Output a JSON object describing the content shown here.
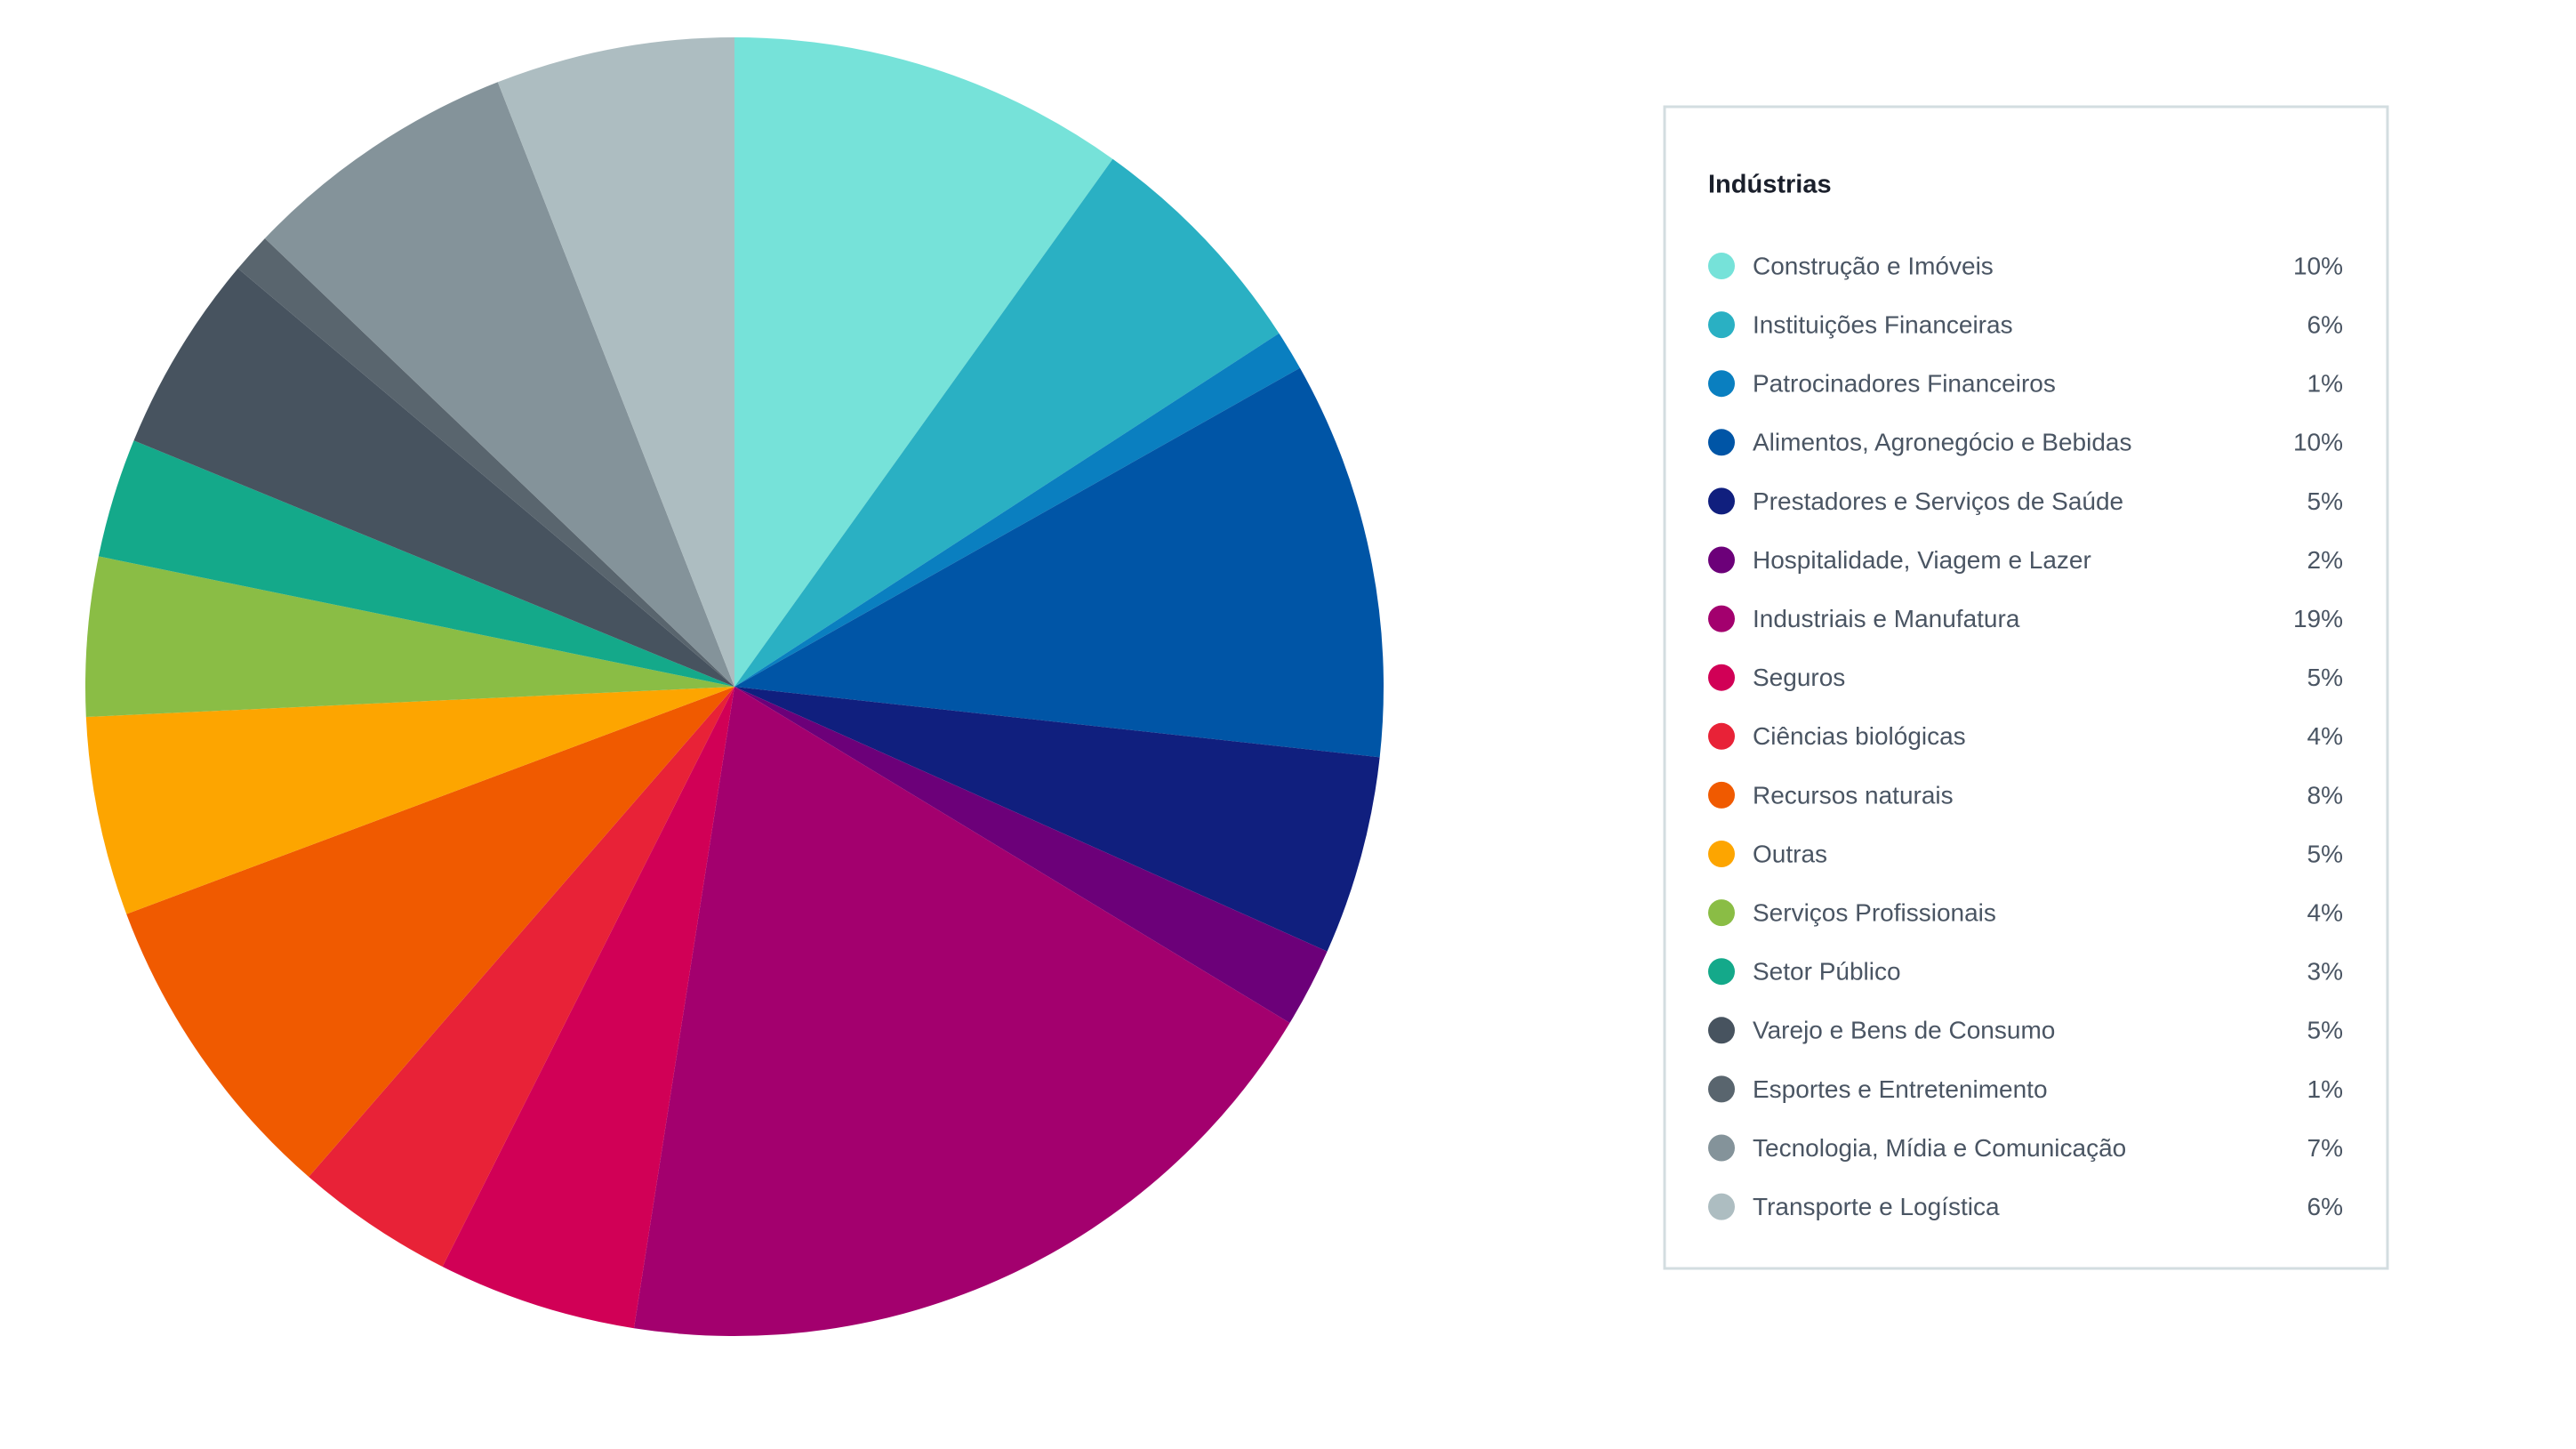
{
  "chart_data": {
    "type": "pie",
    "legend_title": "Indústrias",
    "categories": [
      "Construção e Imóveis",
      "Instituições Financeiras",
      "Patrocinadores Financeiros",
      "Alimentos, Agronegócio e Bebidas",
      "Prestadores e Serviços de Saúde",
      "Hospitalidade, Viagem e Lazer",
      "Industriais e Manufatura",
      "Seguros",
      "Ciências biológicas",
      "Recursos naturais",
      "Outras",
      "Serviços Profissionais",
      "Setor Público",
      "Varejo e Bens de Consumo",
      "Esportes e Entretenimento",
      "Tecnologia, Mídia e Comunicação",
      "Transporte e Logística"
    ],
    "values": [
      10,
      6,
      1,
      10,
      5,
      2,
      19,
      5,
      4,
      8,
      5,
      4,
      3,
      5,
      1,
      7,
      6
    ],
    "value_labels": [
      "10%",
      "6%",
      "1%",
      "10%",
      "5%",
      "2%",
      "19%",
      "5%",
      "4%",
      "8%",
      "5%",
      "4%",
      "3%",
      "5%",
      "1%",
      "7%",
      "6%"
    ],
    "colors": [
      "#76e2d9",
      "#2ab0c3",
      "#0a7fc0",
      "#0055a6",
      "#101f7e",
      "#6c0079",
      "#a3006e",
      "#d10056",
      "#e82237",
      "#f05a00",
      "#fda500",
      "#8abd45",
      "#14a98a",
      "#47535f",
      "#59656e",
      "#84939a",
      "#adbdc1"
    ],
    "legend": "right"
  }
}
